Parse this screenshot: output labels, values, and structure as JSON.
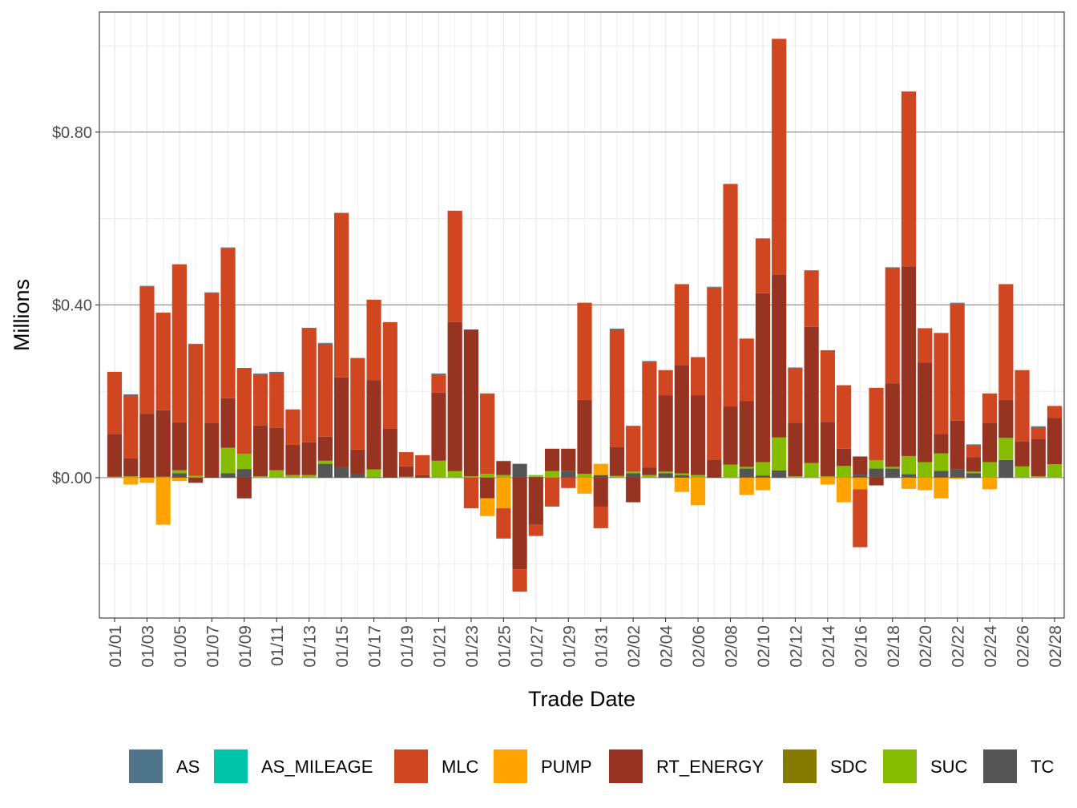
{
  "chart_data": {
    "type": "bar",
    "stacked": true,
    "title": "",
    "xlabel": "Trade Date",
    "ylabel": "Millions",
    "ylim": [
      -0.325,
      1.078
    ],
    "yticks": [
      0.0,
      0.4,
      0.8
    ],
    "ytick_labels": [
      "$0.00",
      "$0.40",
      "$0.80"
    ],
    "grid": true,
    "legend_position": "bottom",
    "categories": [
      "01/01",
      "01/02",
      "01/03",
      "01/04",
      "01/05",
      "01/06",
      "01/07",
      "01/08",
      "01/09",
      "01/10",
      "01/11",
      "01/12",
      "01/13",
      "01/14",
      "01/15",
      "01/16",
      "01/17",
      "01/18",
      "01/19",
      "01/20",
      "01/21",
      "01/22",
      "01/23",
      "01/24",
      "01/25",
      "01/26",
      "01/27",
      "01/28",
      "01/29",
      "01/30",
      "01/31",
      "02/01",
      "02/02",
      "02/03",
      "02/04",
      "02/05",
      "02/06",
      "02/07",
      "02/08",
      "02/09",
      "02/10",
      "02/11",
      "02/12",
      "02/13",
      "02/14",
      "02/15",
      "02/16",
      "02/17",
      "02/18",
      "02/19",
      "02/20",
      "02/21",
      "02/22",
      "02/23",
      "02/24",
      "02/25",
      "02/26",
      "02/27",
      "02/28"
    ],
    "series": [
      {
        "name": "AS",
        "color": "#4F758B",
        "values": [
          0,
          0.002,
          0.002,
          0,
          0,
          0.002,
          0.002,
          0.002,
          0,
          0.002,
          0.002,
          0,
          0.002,
          0.002,
          0,
          0,
          0,
          0,
          0,
          0,
          0.002,
          0,
          0,
          0,
          0.002,
          0,
          0,
          0,
          0,
          0,
          0,
          0.002,
          0,
          0.002,
          0,
          0,
          0,
          0.002,
          0,
          0,
          0,
          0,
          0.002,
          0,
          0,
          0,
          0,
          0,
          0.002,
          0,
          0,
          0,
          0.002,
          0.002,
          0,
          0,
          0,
          0.002,
          0
        ]
      },
      {
        "name": "AS_MILEAGE",
        "color": "#00C4AA",
        "values": [
          0,
          0,
          0,
          0,
          0,
          0,
          0,
          0,
          0,
          0,
          0,
          0,
          0,
          0,
          0,
          0,
          0,
          0,
          0,
          0,
          0,
          0,
          0,
          0,
          0,
          0,
          0,
          0,
          0,
          0,
          0,
          0,
          0,
          0,
          0,
          0,
          0,
          0,
          0,
          0,
          0,
          0,
          0,
          0,
          0,
          0,
          0,
          0,
          0,
          0,
          0,
          0,
          0,
          0,
          0,
          0,
          0,
          0,
          0
        ]
      },
      {
        "name": "MLC",
        "color": "#D04620",
        "values": [
          0.145,
          0.146,
          0.294,
          0.226,
          0.366,
          0.304,
          0.301,
          0.347,
          0.199,
          0.118,
          0.128,
          0.082,
          0.263,
          0.215,
          0.381,
          0.212,
          0.186,
          0.247,
          0.033,
          0.046,
          0.042,
          0.258,
          -0.071,
          0.186,
          -0.07,
          -0.052,
          -0.026,
          -0.067,
          -0.024,
          0.225,
          -0.05,
          0.272,
          0.106,
          0.245,
          0.059,
          0.187,
          0.089,
          0.398,
          0.516,
          0.145,
          0.127,
          0.546,
          0.126,
          0.131,
          0.166,
          0.147,
          -0.134,
          0.168,
          0.267,
          0.405,
          0.08,
          0.234,
          0.271,
          0.028,
          0.069,
          0.268,
          0.165,
          0.027,
          0.028
        ]
      },
      {
        "name": "PUMP",
        "color": "#FFA300",
        "values": [
          0,
          -0.016,
          -0.012,
          -0.109,
          -0.008,
          0,
          0,
          0,
          0,
          0,
          0,
          0,
          0,
          0,
          0,
          0,
          0,
          0,
          0,
          0,
          0,
          0,
          0,
          -0.041,
          -0.071,
          0,
          0,
          0,
          0,
          -0.037,
          0.026,
          0,
          0,
          0,
          0,
          -0.033,
          -0.064,
          0,
          0,
          -0.04,
          -0.029,
          0,
          0,
          0,
          -0.016,
          -0.057,
          -0.027,
          0,
          0,
          -0.026,
          -0.029,
          -0.048,
          -0.003,
          0,
          -0.027,
          0,
          0,
          0,
          0
        ]
      },
      {
        "name": "RT_ENERGY",
        "color": "#963421",
        "values": [
          0.098,
          0.042,
          0.148,
          0.154,
          0.111,
          -0.012,
          0.126,
          0.115,
          -0.048,
          0.118,
          0.098,
          0.07,
          0.076,
          0.056,
          0.208,
          0.056,
          0.207,
          0.113,
          0.024,
          0.006,
          0.158,
          0.345,
          0.34,
          -0.048,
          0.031,
          -0.212,
          -0.109,
          0.052,
          0.052,
          0.171,
          -0.067,
          0.067,
          -0.057,
          0.017,
          0.176,
          0.251,
          0.184,
          0.042,
          0.134,
          0.152,
          0.391,
          0.377,
          0.124,
          0.315,
          0.126,
          0.04,
          0.042,
          -0.018,
          0.193,
          0.439,
          0.23,
          0.045,
          0.113,
          0.033,
          0.09,
          0.088,
          0.058,
          0.087,
          0.107
        ]
      },
      {
        "name": "SDC",
        "color": "#847A00",
        "values": [
          0,
          0,
          0,
          0,
          0,
          0,
          0,
          0,
          0,
          0,
          0,
          0,
          0,
          0,
          0,
          0,
          0,
          0,
          0,
          0,
          0,
          0,
          0,
          0,
          0,
          0,
          0,
          0,
          0,
          0,
          0,
          0,
          0,
          0,
          0,
          0,
          0,
          0,
          0,
          0,
          0,
          0,
          0,
          0,
          0,
          0,
          0,
          0,
          0,
          0,
          0,
          0,
          0,
          0,
          0,
          0,
          0,
          0,
          0
        ]
      },
      {
        "name": "SUC",
        "color": "#86BC00",
        "values": [
          0.002,
          0.003,
          0,
          0.002,
          0.007,
          0.004,
          0,
          0.059,
          0.035,
          0.003,
          0.017,
          0.006,
          0.006,
          0.007,
          0,
          0,
          0.018,
          0,
          0.002,
          0,
          0.039,
          0.015,
          0.003,
          0.009,
          0.006,
          0,
          0.004,
          0.015,
          0,
          0.009,
          0,
          0.004,
          0.004,
          0.006,
          0.004,
          0.004,
          0.006,
          0,
          0.03,
          0.004,
          0.031,
          0.076,
          0.003,
          0.034,
          0.003,
          0.027,
          0,
          0.019,
          0.004,
          0.042,
          0.036,
          0.04,
          0,
          0.004,
          0.036,
          0.051,
          0.026,
          0.003,
          0.031
        ]
      },
      {
        "name": "TC",
        "color": "#555555",
        "values": [
          0,
          0,
          0,
          0,
          0.01,
          0,
          0,
          0.01,
          0.02,
          0,
          0,
          0,
          0,
          0.032,
          0.024,
          0.009,
          0.001,
          0,
          0,
          0,
          0,
          0,
          0,
          0,
          0,
          0.032,
          0.002,
          0,
          0.015,
          0,
          0.006,
          0,
          0.01,
          0,
          0.01,
          0.006,
          0,
          0,
          0,
          0.021,
          0.005,
          0.017,
          0,
          0,
          0,
          0,
          0.007,
          0.021,
          0.021,
          0.008,
          0,
          0.016,
          0.019,
          0.01,
          0,
          0.041,
          0,
          0,
          0
        ]
      }
    ]
  }
}
